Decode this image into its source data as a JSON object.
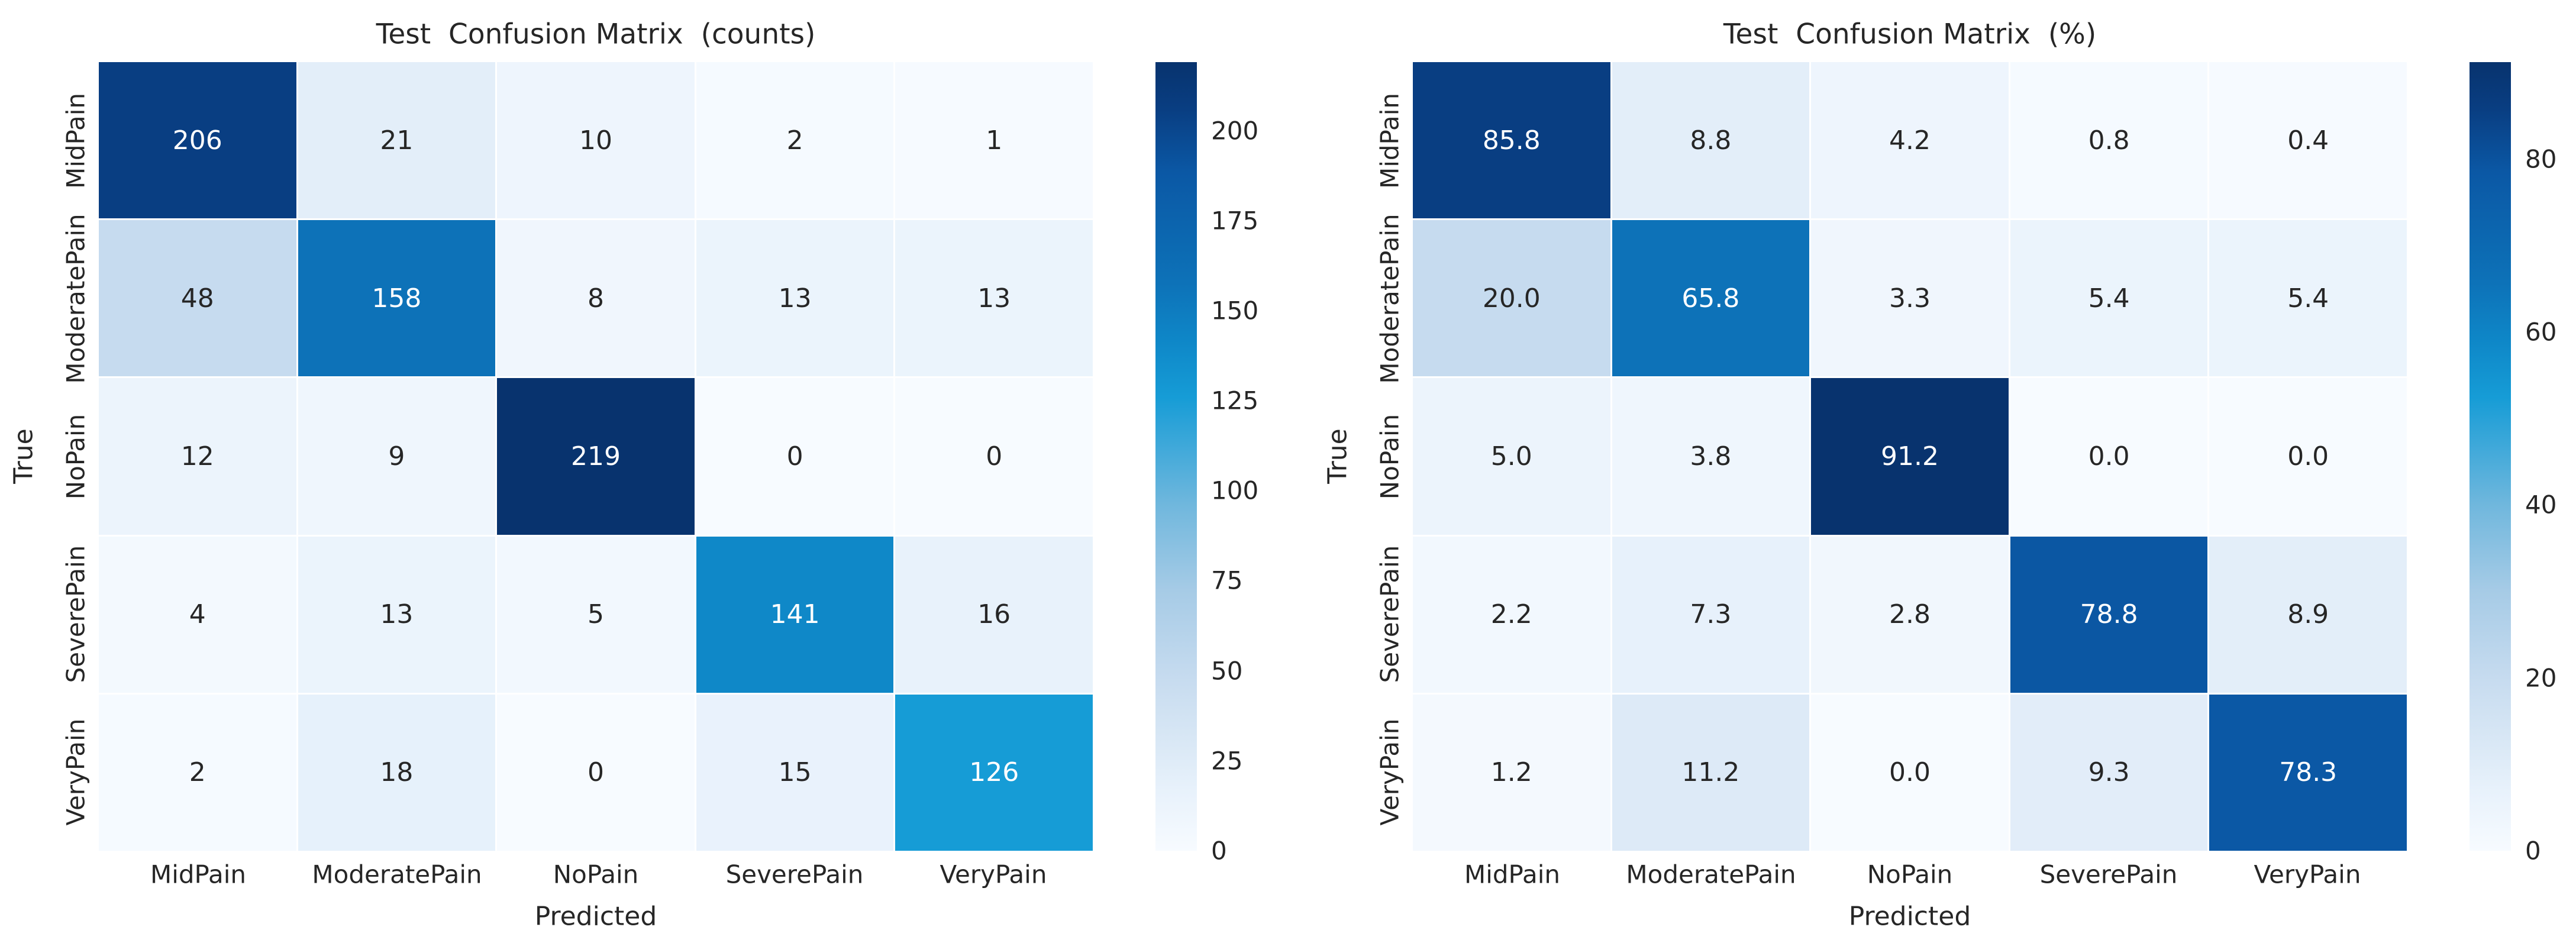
{
  "figure_background": "#ffffff",
  "text_color_dark": "#262626",
  "text_color_light": "#ffffff",
  "colormap_stops": [
    [
      0.0,
      "#f7fbff"
    ],
    [
      0.08,
      "#e7f1fb"
    ],
    [
      0.13,
      "#dbe9f6"
    ],
    [
      0.22,
      "#c6dbef"
    ],
    [
      0.33,
      "#a6cbe6"
    ],
    [
      0.44,
      "#6fb7dd"
    ],
    [
      0.52,
      "#3aa7d9"
    ],
    [
      0.575,
      "#169cd6"
    ],
    [
      0.65,
      "#0e86c7"
    ],
    [
      0.72,
      "#0d72b8"
    ],
    [
      0.86,
      "#0b58a5"
    ],
    [
      0.94,
      "#093e82"
    ],
    [
      1.0,
      "#08336e"
    ]
  ],
  "chart_data": [
    {
      "type": "heatmap",
      "title": "Test  Confusion Matrix  (counts)",
      "xlabel": "Predicted",
      "ylabel": "True",
      "categories": [
        "MidPain",
        "ModeratePain",
        "NoPain",
        "SeverePain",
        "VeryPain"
      ],
      "rows": [
        [
          206,
          21,
          10,
          2,
          1
        ],
        [
          48,
          158,
          8,
          13,
          13
        ],
        [
          12,
          9,
          219,
          0,
          0
        ],
        [
          4,
          13,
          5,
          141,
          16
        ],
        [
          2,
          18,
          0,
          15,
          126
        ]
      ],
      "value_format": "int",
      "vmin": 0,
      "vmax": 219,
      "colorbar_ticks": [
        0,
        25,
        50,
        75,
        100,
        125,
        150,
        175,
        200
      ],
      "grid": false,
      "legend_position": "right-colorbar"
    },
    {
      "type": "heatmap",
      "title": "Test  Confusion Matrix  (%)",
      "xlabel": "Predicted",
      "ylabel": "True",
      "categories": [
        "MidPain",
        "ModeratePain",
        "NoPain",
        "SeverePain",
        "VeryPain"
      ],
      "rows": [
        [
          85.8,
          8.8,
          4.2,
          0.8,
          0.4
        ],
        [
          20.0,
          65.8,
          3.3,
          5.4,
          5.4
        ],
        [
          5.0,
          3.8,
          91.2,
          0.0,
          0.0
        ],
        [
          2.2,
          7.3,
          2.8,
          78.8,
          8.9
        ],
        [
          1.2,
          11.2,
          0.0,
          9.3,
          78.3
        ]
      ],
      "value_format": "one_decimal",
      "vmin": 0,
      "vmax": 91.2,
      "colorbar_ticks": [
        0,
        20,
        40,
        60,
        80
      ],
      "grid": false,
      "legend_position": "right-colorbar"
    }
  ]
}
